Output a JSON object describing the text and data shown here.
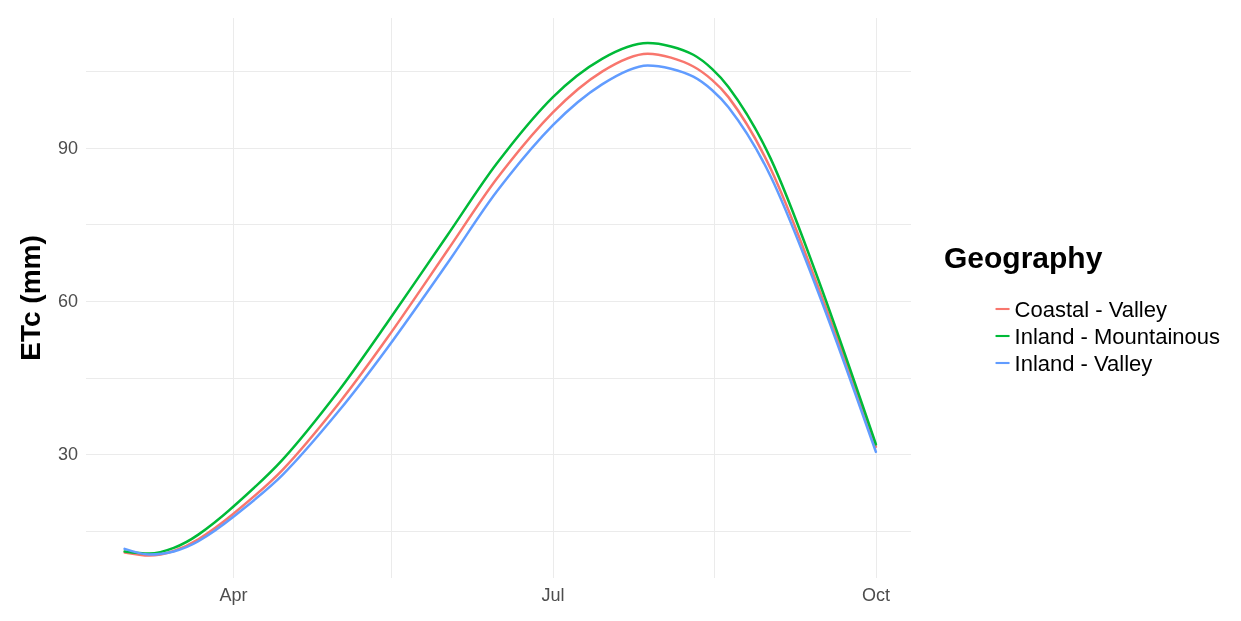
{
  "chart_data": {
    "type": "line",
    "ylabel": "ETc (mm)",
    "legend_title": "Geography",
    "legend": "right",
    "grid": true,
    "marker": "none",
    "line_style": "solid",
    "x": [
      "--03-01",
      "--03-08",
      "--03-15",
      "--03-22",
      "--04-01",
      "--04-15",
      "--05-01",
      "--05-15",
      "--06-01",
      "--06-15",
      "--07-01",
      "--07-15",
      "--07-28",
      "--08-10",
      "--08-20",
      "--09-01",
      "--09-15",
      "--10-01"
    ],
    "xlim": [
      "--02-18",
      "--10-11"
    ],
    "xticks": [
      {
        "value": "--04-01",
        "label": "Apr"
      },
      {
        "value": "--05-16",
        "label": null
      },
      {
        "value": "--07-01",
        "label": "Jul"
      },
      {
        "value": "--08-16",
        "label": null
      },
      {
        "value": "--10-01",
        "label": "Oct"
      }
    ],
    "ylim": [
      5.8,
      115.5
    ],
    "yticks": [
      {
        "value": 15,
        "label": null
      },
      {
        "value": 30,
        "label": "30"
      },
      {
        "value": 45,
        "label": null
      },
      {
        "value": 60,
        "label": "60"
      },
      {
        "value": 75,
        "label": null
      },
      {
        "value": 90,
        "label": "90"
      },
      {
        "value": 105,
        "label": null
      }
    ],
    "series": [
      {
        "name": "Coastal - Valley",
        "color": "#f8766d",
        "values": [
          10.8,
          10.2,
          11.1,
          13.4,
          18.4,
          27,
          40,
          53,
          70,
          84,
          97,
          105,
          108.5,
          106,
          100,
          86,
          62,
          31.5
        ]
      },
      {
        "name": "Inland - Mountainous",
        "color": "#00ba38",
        "values": [
          11,
          10.6,
          11.7,
          14.3,
          19.8,
          29,
          42.5,
          56,
          73,
          87,
          100,
          107.5,
          110.6,
          108.3,
          102,
          88,
          63.5,
          32
        ]
      },
      {
        "name": "Inland - Valley",
        "color": "#619cff",
        "values": [
          11.5,
          10.4,
          11,
          13,
          17.8,
          26,
          38.5,
          51,
          67.5,
          81.5,
          94.5,
          102.5,
          106.2,
          104,
          98,
          84.5,
          61,
          30.5
        ]
      }
    ]
  }
}
